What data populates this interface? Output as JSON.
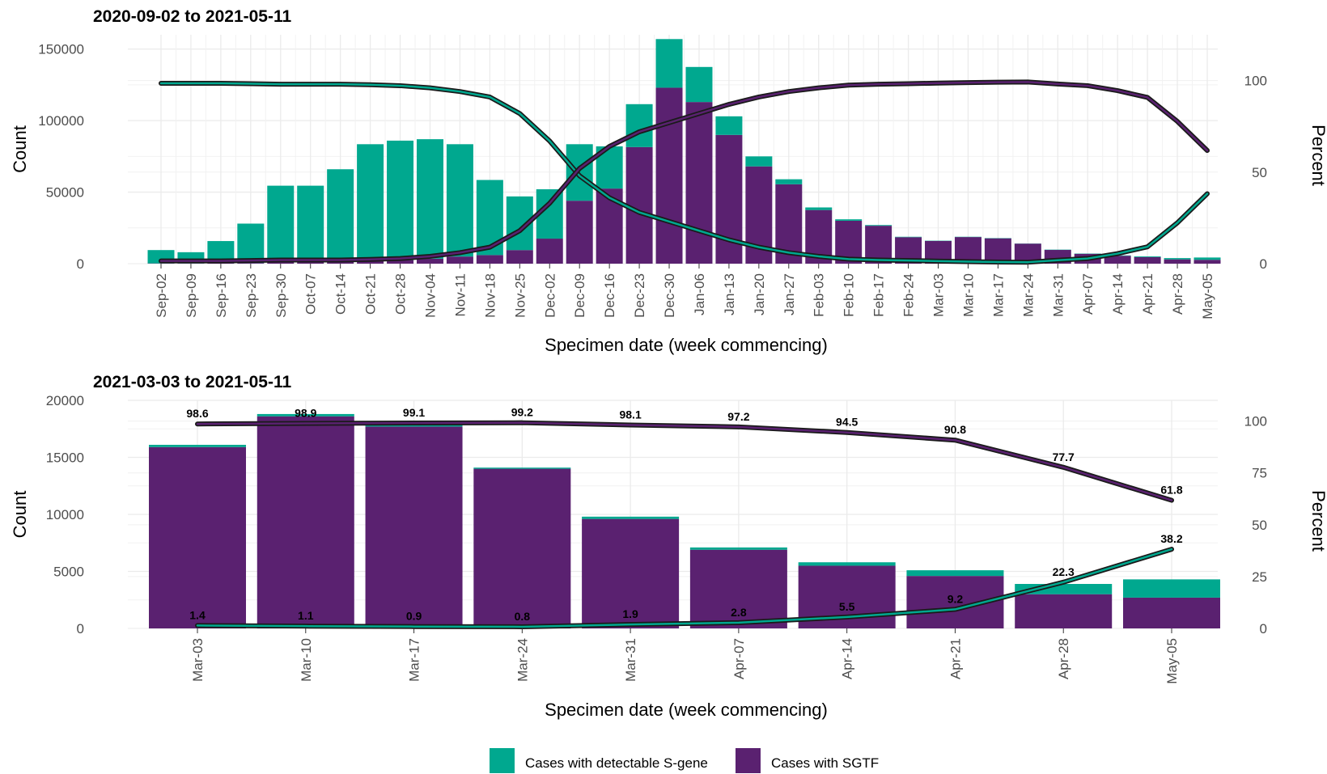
{
  "colors": {
    "sgene": "#00A88F",
    "sgtf": "#5A2170",
    "grid": "#ebebeb",
    "outline": "#1a1a1a"
  },
  "legend": {
    "sgene_label": "Cases with detectable S-gene",
    "sgtf_label": "Cases with SGTF"
  },
  "chart_data": [
    {
      "type": "bar",
      "stacked": true,
      "title": "2020-09-02 to 2021-05-11",
      "xlabel": "Specimen date (week commencing)",
      "ylabel": "Count",
      "y2label": "Percent",
      "ylim": [
        0,
        160000
      ],
      "yticks": [
        0,
        50000,
        100000,
        150000
      ],
      "y2lim": [
        0,
        125
      ],
      "y2ticks": [
        0,
        50,
        100
      ],
      "grid": true,
      "categories": [
        "Sep-02",
        "Sep-09",
        "Sep-16",
        "Sep-23",
        "Sep-30",
        "Oct-07",
        "Oct-14",
        "Oct-21",
        "Oct-28",
        "Nov-04",
        "Nov-11",
        "Nov-18",
        "Nov-25",
        "Dec-02",
        "Dec-09",
        "Dec-16",
        "Dec-23",
        "Dec-30",
        "Jan-06",
        "Jan-13",
        "Jan-20",
        "Jan-27",
        "Feb-03",
        "Feb-10",
        "Feb-17",
        "Feb-24",
        "Mar-03",
        "Mar-10",
        "Mar-17",
        "Mar-24",
        "Mar-31",
        "Apr-07",
        "Apr-14",
        "Apr-21",
        "Apr-28",
        "May-05"
      ],
      "series": [
        {
          "name": "Cases with SGTF",
          "kind": "bar",
          "color": "#5A2170",
          "values": [
            200,
            200,
            300,
            500,
            1000,
            1000,
            1500,
            2000,
            2500,
            3500,
            5000,
            6000,
            9500,
            17500,
            44000,
            52500,
            81500,
            123000,
            113000,
            90000,
            68000,
            55500,
            37500,
            30000,
            26500,
            18500,
            15900,
            18600,
            17700,
            14000,
            9600,
            6900,
            5500,
            4600,
            3000,
            2700
          ]
        },
        {
          "name": "Cases with detectable S-gene",
          "kind": "bar",
          "color": "#00A88F",
          "values": [
            9300,
            7800,
            15500,
            27500,
            53500,
            53500,
            64500,
            81500,
            83500,
            83500,
            78500,
            52500,
            37500,
            34500,
            39500,
            29500,
            30000,
            34000,
            24500,
            13000,
            7000,
            3500,
            1800,
            1000,
            500,
            300,
            200,
            200,
            200,
            100,
            200,
            200,
            300,
            500,
            900,
            1600
          ]
        },
        {
          "name": "Cases with SGTF",
          "kind": "line",
          "color": "#5A2170",
          "values": [
            1.5,
            1.5,
            1.5,
            1.7,
            2,
            2,
            2,
            2.3,
            2.8,
            4,
            6,
            9,
            18,
            33,
            52,
            64,
            72,
            77,
            82,
            87,
            91,
            94,
            96,
            97.5,
            98,
            98.3,
            98.6,
            98.9,
            99.1,
            99.2,
            98.1,
            97.2,
            94.5,
            90.8,
            77.7,
            61.8
          ]
        },
        {
          "name": "Cases with detectable S-gene",
          "kind": "line",
          "color": "#00A88F",
          "values": [
            98.5,
            98.5,
            98.5,
            98.3,
            98,
            98,
            98,
            97.7,
            97.2,
            96,
            94,
            91,
            82,
            67,
            48,
            36,
            28,
            23,
            18,
            13,
            9,
            6,
            4,
            2.5,
            2,
            1.7,
            1.4,
            1.1,
            0.9,
            0.8,
            1.9,
            2.8,
            5.5,
            9.2,
            22.3,
            38.2
          ]
        }
      ]
    },
    {
      "type": "bar",
      "stacked": true,
      "title": "2021-03-03 to 2021-05-11",
      "xlabel": "Specimen date (week commencing)",
      "ylabel": "Count",
      "y2label": "Percent",
      "ylim": [
        0,
        20000
      ],
      "yticks": [
        0,
        5000,
        10000,
        15000,
        20000
      ],
      "y2lim": [
        0,
        110
      ],
      "y2ticks": [
        0,
        25,
        50,
        75,
        100
      ],
      "grid": true,
      "categories": [
        "Mar-03",
        "Mar-10",
        "Mar-17",
        "Mar-24",
        "Mar-31",
        "Apr-07",
        "Apr-14",
        "Apr-21",
        "Apr-28",
        "May-05"
      ],
      "series": [
        {
          "name": "Cases with SGTF",
          "kind": "bar",
          "color": "#5A2170",
          "values": [
            15900,
            18600,
            17700,
            14000,
            9600,
            6900,
            5500,
            4600,
            3000,
            2700
          ]
        },
        {
          "name": "Cases with detectable S-gene",
          "kind": "bar",
          "color": "#00A88F",
          "values": [
            200,
            200,
            200,
            100,
            200,
            200,
            300,
            500,
            900,
            1600
          ]
        },
        {
          "name": "Cases with SGTF",
          "kind": "line",
          "color": "#5A2170",
          "labels": [
            "98.6",
            "98.9",
            "99.1",
            "99.2",
            "98.1",
            "97.2",
            "94.5",
            "90.8",
            "77.7",
            "61.8"
          ],
          "values": [
            98.6,
            98.9,
            99.1,
            99.2,
            98.1,
            97.2,
            94.5,
            90.8,
            77.7,
            61.8
          ]
        },
        {
          "name": "Cases with detectable S-gene",
          "kind": "line",
          "color": "#00A88F",
          "labels": [
            "1.4",
            "1.1",
            "0.9",
            "0.8",
            "1.9",
            "2.8",
            "5.5",
            "9.2",
            "22.3",
            "38.2"
          ],
          "values": [
            1.4,
            1.1,
            0.9,
            0.8,
            1.9,
            2.8,
            5.5,
            9.2,
            22.3,
            38.2
          ]
        }
      ]
    }
  ]
}
